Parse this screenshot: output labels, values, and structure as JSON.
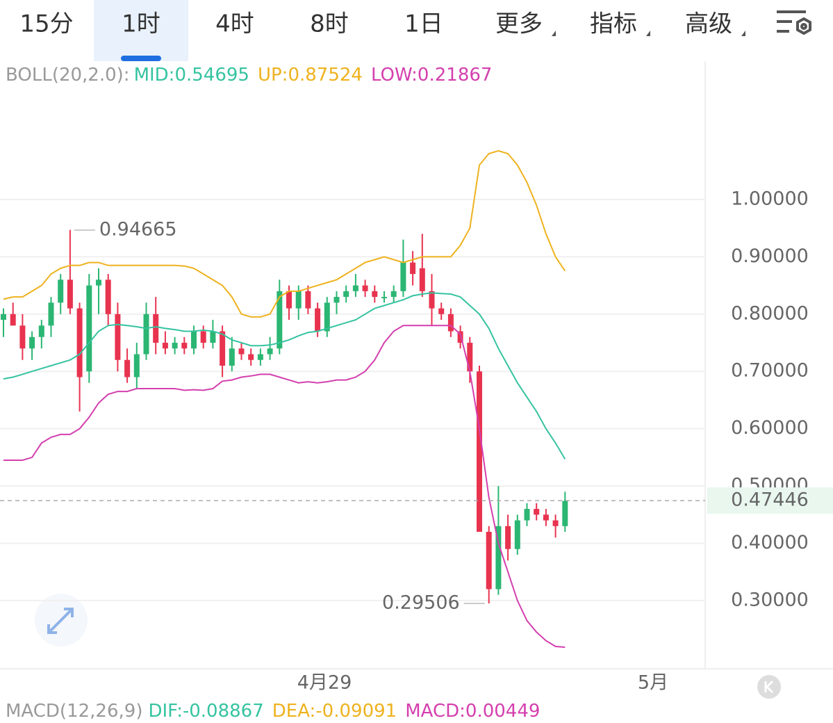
{
  "tabs": [
    "15分",
    "1时",
    "4时",
    "8时",
    "1日",
    "更多",
    "指标",
    "高级"
  ],
  "chart_data": {
    "type": "candlestick",
    "indicator": "BOLL(20,2.0):",
    "legend": [
      {
        "text": "MID:0.54695",
        "color": "#35c3a0"
      },
      {
        "text": "UP:0.87524",
        "color": "#eeb21e"
      },
      {
        "text": "LOW:0.21867",
        "color": "#d43fae"
      }
    ],
    "candles": {
      "open": [
        0.79,
        0.8,
        0.78,
        0.74,
        0.76,
        0.78,
        0.82,
        0.86,
        0.81,
        0.7,
        0.85,
        0.86,
        0.8,
        0.72,
        0.69,
        0.73,
        0.8,
        0.75,
        0.74,
        0.75,
        0.74,
        0.77,
        0.75,
        0.77,
        0.71,
        0.74,
        0.73,
        0.72,
        0.73,
        0.74,
        0.84,
        0.81,
        0.84,
        0.81,
        0.77,
        0.82,
        0.83,
        0.84,
        0.85,
        0.84,
        0.83,
        0.83,
        0.84,
        0.89,
        0.88,
        0.84,
        0.81,
        0.8,
        0.77,
        0.75,
        0.7,
        0.42,
        0.32,
        0.43,
        0.39,
        0.44,
        0.46,
        0.45,
        0.44,
        0.43
      ],
      "high": [
        0.81,
        0.82,
        0.8,
        0.77,
        0.79,
        0.83,
        0.87,
        0.947,
        0.82,
        0.87,
        0.88,
        0.87,
        0.82,
        0.74,
        0.75,
        0.82,
        0.83,
        0.77,
        0.76,
        0.76,
        0.78,
        0.78,
        0.79,
        0.78,
        0.76,
        0.75,
        0.74,
        0.74,
        0.76,
        0.86,
        0.85,
        0.85,
        0.85,
        0.82,
        0.83,
        0.84,
        0.85,
        0.87,
        0.86,
        0.85,
        0.84,
        0.85,
        0.93,
        0.91,
        0.94,
        0.87,
        0.82,
        0.81,
        0.78,
        0.76,
        0.71,
        0.43,
        0.5,
        0.45,
        0.45,
        0.47,
        0.47,
        0.46,
        0.45,
        0.49
      ],
      "low": [
        0.76,
        0.78,
        0.72,
        0.72,
        0.74,
        0.76,
        0.8,
        0.8,
        0.63,
        0.68,
        0.8,
        0.78,
        0.7,
        0.68,
        0.67,
        0.72,
        0.73,
        0.73,
        0.73,
        0.73,
        0.73,
        0.74,
        0.74,
        0.69,
        0.7,
        0.72,
        0.71,
        0.71,
        0.72,
        0.73,
        0.79,
        0.79,
        0.8,
        0.76,
        0.76,
        0.8,
        0.82,
        0.83,
        0.83,
        0.82,
        0.82,
        0.82,
        0.83,
        0.85,
        0.83,
        0.78,
        0.79,
        0.76,
        0.74,
        0.68,
        0.42,
        0.295,
        0.31,
        0.37,
        0.38,
        0.43,
        0.44,
        0.43,
        0.41,
        0.42
      ],
      "close": [
        0.8,
        0.78,
        0.74,
        0.76,
        0.78,
        0.82,
        0.86,
        0.81,
        0.69,
        0.85,
        0.86,
        0.8,
        0.72,
        0.69,
        0.73,
        0.8,
        0.75,
        0.74,
        0.75,
        0.74,
        0.77,
        0.75,
        0.77,
        0.71,
        0.74,
        0.73,
        0.72,
        0.73,
        0.74,
        0.84,
        0.81,
        0.84,
        0.81,
        0.77,
        0.82,
        0.83,
        0.84,
        0.85,
        0.84,
        0.83,
        0.83,
        0.84,
        0.89,
        0.87,
        0.84,
        0.81,
        0.8,
        0.77,
        0.75,
        0.7,
        0.42,
        0.32,
        0.43,
        0.39,
        0.44,
        0.46,
        0.45,
        0.44,
        0.43,
        0.474
      ]
    },
    "up_color": "#2bb673",
    "down_color": "#e8334f",
    "bands": [
      {
        "color": "#eeb21e",
        "values": [
          0.826,
          0.83,
          0.83,
          0.84,
          0.85,
          0.87,
          0.88,
          0.885,
          0.885,
          0.89,
          0.89,
          0.885,
          0.885,
          0.885,
          0.885,
          0.885,
          0.885,
          0.885,
          0.885,
          0.884,
          0.88,
          0.87,
          0.86,
          0.85,
          0.83,
          0.8,
          0.795,
          0.795,
          0.8,
          0.83,
          0.84,
          0.84,
          0.845,
          0.85,
          0.855,
          0.86,
          0.87,
          0.88,
          0.89,
          0.895,
          0.9,
          0.895,
          0.89,
          0.895,
          0.9,
          0.9,
          0.9,
          0.9,
          0.92,
          0.95,
          1.06,
          1.08,
          1.085,
          1.08,
          1.06,
          1.03,
          0.99,
          0.94,
          0.9,
          0.87524
        ]
      },
      {
        "color": "#35c3a0",
        "values": [
          0.687,
          0.69,
          0.695,
          0.7,
          0.705,
          0.71,
          0.715,
          0.72,
          0.73,
          0.75,
          0.77,
          0.78,
          0.782,
          0.78,
          0.778,
          0.775,
          0.778,
          0.775,
          0.773,
          0.77,
          0.77,
          0.772,
          0.77,
          0.765,
          0.755,
          0.75,
          0.745,
          0.745,
          0.746,
          0.75,
          0.755,
          0.762,
          0.768,
          0.77,
          0.775,
          0.78,
          0.785,
          0.79,
          0.8,
          0.81,
          0.815,
          0.82,
          0.825,
          0.832,
          0.835,
          0.837,
          0.836,
          0.835,
          0.83,
          0.815,
          0.8,
          0.775,
          0.74,
          0.71,
          0.68,
          0.655,
          0.63,
          0.6,
          0.575,
          0.54695
        ]
      },
      {
        "color": "#d43fae",
        "values": [
          0.545,
          0.545,
          0.545,
          0.55,
          0.575,
          0.585,
          0.59,
          0.59,
          0.6,
          0.62,
          0.645,
          0.66,
          0.665,
          0.665,
          0.67,
          0.67,
          0.67,
          0.67,
          0.67,
          0.667,
          0.668,
          0.667,
          0.67,
          0.683,
          0.685,
          0.69,
          0.692,
          0.695,
          0.695,
          0.69,
          0.685,
          0.68,
          0.682,
          0.68,
          0.682,
          0.685,
          0.685,
          0.69,
          0.7,
          0.72,
          0.75,
          0.77,
          0.78,
          0.78,
          0.78,
          0.78,
          0.78,
          0.78,
          0.765,
          0.7,
          0.6,
          0.48,
          0.4,
          0.35,
          0.3,
          0.265,
          0.245,
          0.23,
          0.22,
          0.21867
        ]
      }
    ],
    "ylim": [
      0.181,
      1.239
    ],
    "yticks": [
      {
        "value": 0.3,
        "label": "0.30000"
      },
      {
        "value": 0.4,
        "label": "0.40000"
      },
      {
        "value": 0.5,
        "label": "0.50000"
      },
      {
        "value": 0.6,
        "label": "0.60000"
      },
      {
        "value": 0.7,
        "label": "0.70000"
      },
      {
        "value": 0.8,
        "label": "0.80000"
      },
      {
        "value": 0.9,
        "label": "0.90000"
      },
      {
        "value": 1.0,
        "label": "1.00000"
      }
    ],
    "grid": true,
    "last_price": 0.47446,
    "annotations": [
      0.94665,
      0.29506
    ],
    "x_labels": [
      "4月29",
      "5月"
    ]
  },
  "macd": {
    "title": "MACD(12,26,9)",
    "items": [
      {
        "text": "DIF:-0.08867",
        "color": "#35c3a0"
      },
      {
        "text": "DEA:-0.09091",
        "color": "#eeb21e"
      },
      {
        "text": "MACD:0.00449",
        "color": "#d43fae"
      }
    ]
  }
}
